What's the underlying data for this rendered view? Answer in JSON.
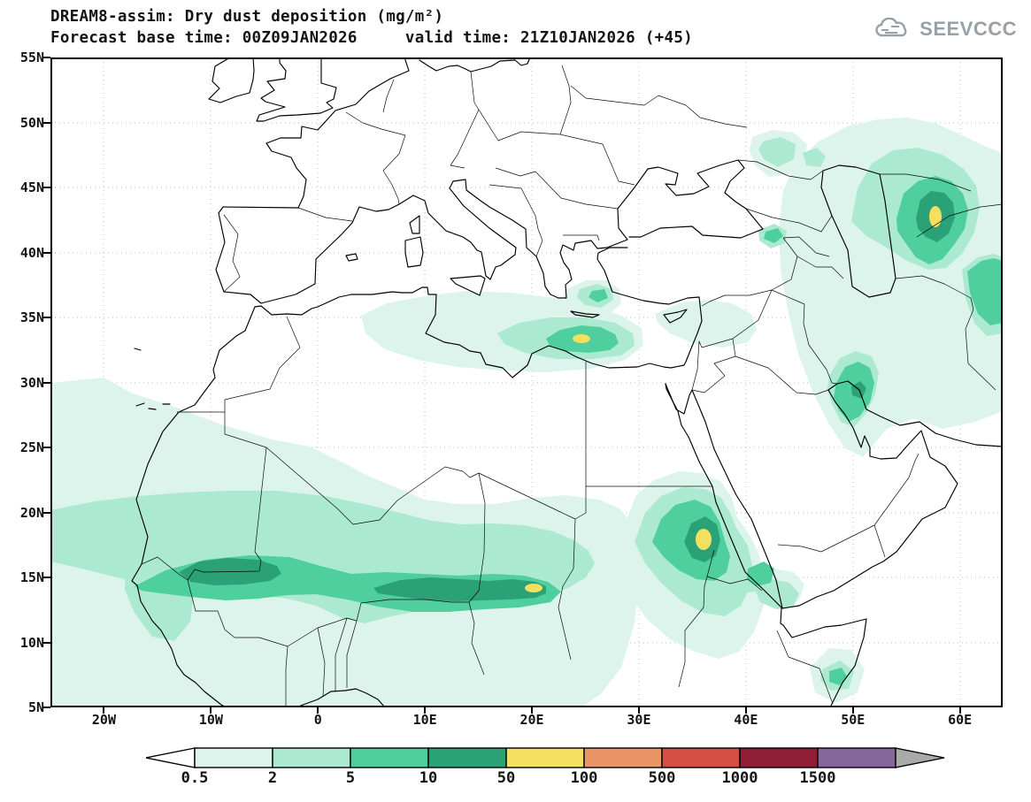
{
  "header": {
    "title": "DREAM8-assim: Dry dust deposition (mg/m²)",
    "subtitle": "Forecast base time: 00Z09JAN2026     valid time: 21Z10JAN2026 (+45)",
    "base_time": "00Z09JAN2026",
    "valid_time": "21Z10JAN2026",
    "forecast_step": "+45",
    "logo": "SEEVCCC"
  },
  "axes": {
    "y_ticks": [
      "55N",
      "50N",
      "45N",
      "40N",
      "35N",
      "30N",
      "25N",
      "20N",
      "15N",
      "10N",
      "5N"
    ],
    "x_ticks": [
      "20W",
      "10W",
      "0",
      "10E",
      "20E",
      "30E",
      "40E",
      "50E",
      "60E"
    ]
  },
  "legend": {
    "unit": "mg/m²",
    "values": [
      "0.5",
      "2",
      "5",
      "10",
      "50",
      "100",
      "500",
      "1000",
      "1500"
    ],
    "colors": [
      "#ffffff",
      "#dcf4ec",
      "#abe9d1",
      "#4ecf9d",
      "#2ba178",
      "#f2e05e",
      "#ea9566",
      "#d34f44",
      "#8f1d33",
      "#85659a",
      "#aaaaaa"
    ]
  }
}
